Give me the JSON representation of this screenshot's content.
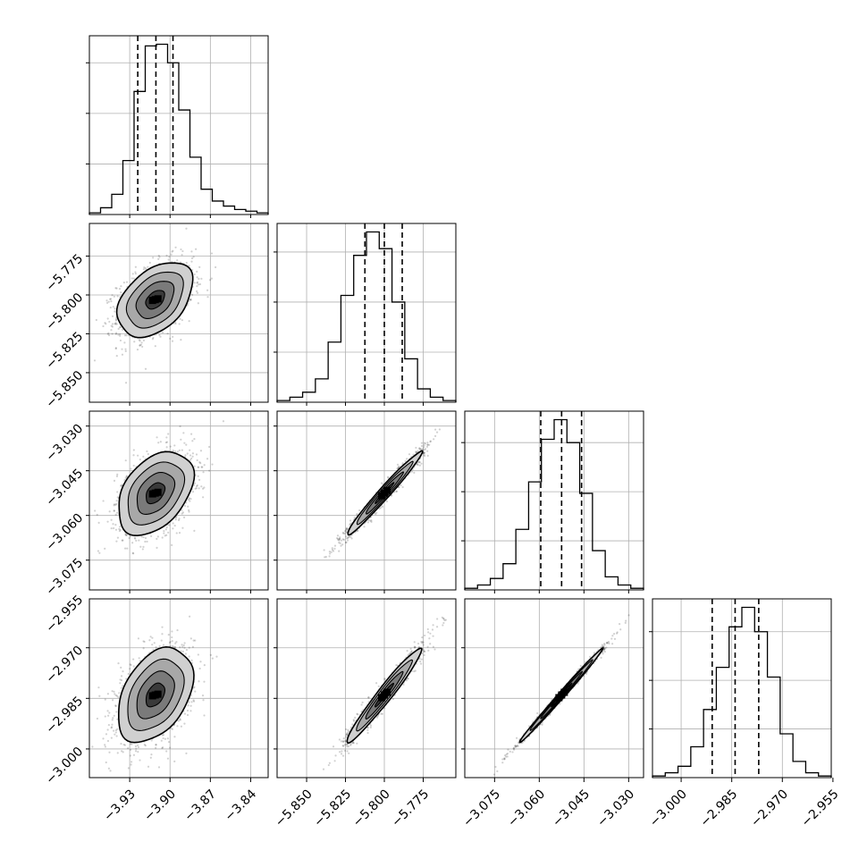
{
  "figure": {
    "type": "corner-plot",
    "background": "#ffffff",
    "ink": "#000000",
    "grid_color": "#b0b0b0"
  },
  "chart_data": {
    "type": "corner",
    "parameters": [
      {
        "id": "p0",
        "range": [
          -3.96,
          -3.827
        ],
        "ticks": [
          -3.93,
          -3.9,
          -3.87,
          -3.84
        ],
        "tick_labels": [
          "−3.93",
          "−3.90",
          "−3.87",
          "−3.84"
        ],
        "quantiles": [
          -3.924,
          -3.9105,
          -3.8978
        ],
        "hist_counts": [
          1,
          4,
          12,
          32,
          73,
          100,
          101,
          90,
          62,
          34,
          15,
          8,
          5,
          3,
          2,
          1
        ],
        "hist_grid_y": [
          30,
          60,
          90
        ]
      },
      {
        "id": "p1",
        "range": [
          -5.869,
          -5.754
        ],
        "ticks": [
          -5.85,
          -5.825,
          -5.8,
          -5.775
        ],
        "tick_labels": [
          "−5.850",
          "−5.825",
          "−5.800",
          "−5.775"
        ],
        "quantiles": [
          -5.8125,
          -5.8,
          -5.7885
        ],
        "hist_counts": [
          1,
          3,
          6,
          14,
          36,
          64,
          88,
          102,
          92,
          60,
          26,
          8,
          3,
          1
        ],
        "hist_grid_y": [
          30,
          60,
          90
        ]
      },
      {
        "id": "p2",
        "range": [
          -3.085,
          -3.025
        ],
        "ticks": [
          -3.075,
          -3.06,
          -3.045,
          -3.03
        ],
        "tick_labels": [
          "−3.075",
          "−3.060",
          "−3.045",
          "−3.030"
        ],
        "quantiles": [
          -3.0595,
          -3.0525,
          -3.0458
        ],
        "hist_counts": [
          1,
          3,
          7,
          16,
          37,
          66,
          92,
          104,
          90,
          59,
          24,
          8,
          3,
          1
        ],
        "hist_grid_y": [
          30,
          60,
          90
        ]
      },
      {
        "id": "p3",
        "range": [
          -3.0085,
          -2.9555
        ],
        "ticks": [
          -3.0,
          -2.985,
          -2.97,
          -2.955
        ],
        "tick_labels": [
          "−3.000",
          "−2.985",
          "−2.970",
          "−2.955"
        ],
        "quantiles": [
          -2.9908,
          -2.984,
          -2.977
        ],
        "hist_counts": [
          1,
          3,
          7,
          19,
          42,
          68,
          93,
          105,
          90,
          62,
          27,
          10,
          3,
          1
        ],
        "hist_grid_y": [
          30,
          60,
          90
        ]
      }
    ],
    "pairs": [
      {
        "x": 0,
        "y": 1,
        "center": [
          -3.911,
          -5.803
        ],
        "sd": [
          0.014,
          0.012
        ],
        "rho": 0.42
      },
      {
        "x": 0,
        "y": 2,
        "center": [
          -3.911,
          -3.0525
        ],
        "sd": [
          0.014,
          0.007
        ],
        "rho": 0.4
      },
      {
        "x": 0,
        "y": 3,
        "center": [
          -3.911,
          -2.984
        ],
        "sd": [
          0.014,
          0.007
        ],
        "rho": 0.4
      },
      {
        "x": 1,
        "y": 2,
        "center": [
          -5.8,
          -3.0525
        ],
        "sd": [
          0.012,
          0.007
        ],
        "rho": 0.98
      },
      {
        "x": 1,
        "y": 3,
        "center": [
          -5.8,
          -2.984
        ],
        "sd": [
          0.012,
          0.007
        ],
        "rho": 0.97
      },
      {
        "x": 2,
        "y": 3,
        "center": [
          -3.0525,
          -2.984
        ],
        "sd": [
          0.007,
          0.007
        ],
        "rho": 0.995
      }
    ],
    "contour_levels_sigma": [
      0.5,
      1.0,
      1.5,
      2.0
    ],
    "grid": true
  }
}
